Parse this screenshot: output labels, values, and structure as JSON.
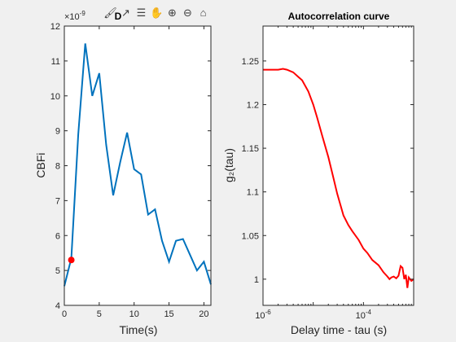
{
  "toolbar": {
    "icons": [
      "brush-icon",
      "datatip-icon",
      "insert-legend-icon",
      "pan-hand-icon",
      "zoom-in-icon",
      "zoom-out-icon",
      "home-icon"
    ]
  },
  "colors": {
    "left_line": "#0072BD",
    "left_marker": "#FF0000",
    "right_line": "#FF0000"
  },
  "chart_data": [
    {
      "type": "line",
      "title": "D",
      "xlabel": "Time(s)",
      "ylabel": "CBFi",
      "exponent_label": "×10",
      "exponent_value": "-9",
      "xlim": [
        0,
        21
      ],
      "ylim": [
        4,
        12
      ],
      "x_ticks": [
        "0",
        "5",
        "10",
        "15",
        "20"
      ],
      "x_tick_values": [
        0,
        5,
        10,
        15,
        20
      ],
      "y_ticks": [
        "4",
        "5",
        "6",
        "7",
        "8",
        "9",
        "10",
        "11",
        "12"
      ],
      "y_tick_values": [
        4,
        5,
        6,
        7,
        8,
        9,
        10,
        11,
        12
      ],
      "series": [
        {
          "x": [
            0,
            1,
            2,
            3,
            4,
            5,
            6,
            7,
            8,
            9,
            10,
            11,
            12,
            13,
            14,
            15,
            16,
            17,
            18,
            19,
            20,
            21
          ],
          "y": [
            4.55,
            5.35,
            8.9,
            11.5,
            10.0,
            10.65,
            8.6,
            7.15,
            8.1,
            8.95,
            7.9,
            7.75,
            6.6,
            6.75,
            5.85,
            5.25,
            5.85,
            5.9,
            5.45,
            5.0,
            5.25,
            4.6
          ]
        }
      ],
      "marker": {
        "x": 1,
        "y": 5.3
      }
    },
    {
      "type": "line",
      "title": "Autocorrelation curve",
      "xlabel": "Delay time - tau (s)",
      "ylabel": "g₂(tau)",
      "x_scale": "log",
      "xlim": [
        1e-06,
        0.001
      ],
      "ylim": [
        0.97,
        1.29
      ],
      "x_ticks": [
        {
          "base": "10",
          "exp": "-6",
          "value": 1e-06
        },
        {
          "base": "10",
          "exp": "-4",
          "value": 0.0001
        }
      ],
      "y_ticks": [
        "1",
        "1.05",
        "1.1",
        "1.15",
        "1.2",
        "1.25"
      ],
      "y_tick_values": [
        1,
        1.05,
        1.1,
        1.15,
        1.2,
        1.25
      ],
      "series": [
        {
          "x": [
            1e-06,
            1.5e-06,
            2e-06,
            2.5e-06,
            3e-06,
            4e-06,
            5e-06,
            6e-06,
            8e-06,
            1e-05,
            1.2e-05,
            1.5e-05,
            2e-05,
            2.5e-05,
            3e-05,
            4e-05,
            5e-05,
            6e-05,
            8e-05,
            0.0001,
            0.00012,
            0.00015,
            0.0002,
            0.00025,
            0.0003,
            0.00033,
            0.00036,
            0.0004,
            0.00045,
            0.0005,
            0.00055,
            0.0006,
            0.00065,
            0.0007,
            0.00075,
            0.0008,
            0.00085,
            0.0009,
            0.001
          ],
          "y": [
            1.24,
            1.24,
            1.24,
            1.241,
            1.24,
            1.237,
            1.232,
            1.228,
            1.215,
            1.2,
            1.185,
            1.165,
            1.14,
            1.117,
            1.098,
            1.073,
            1.062,
            1.055,
            1.045,
            1.035,
            1.03,
            1.022,
            1.016,
            1.008,
            1.003,
            1.0,
            1.002,
            1.003,
            1.001,
            1.004,
            1.015,
            1.013,
            1.0,
            1.005,
            0.99,
            1.002,
            1.0,
            0.998,
            1.0
          ]
        }
      ]
    }
  ]
}
